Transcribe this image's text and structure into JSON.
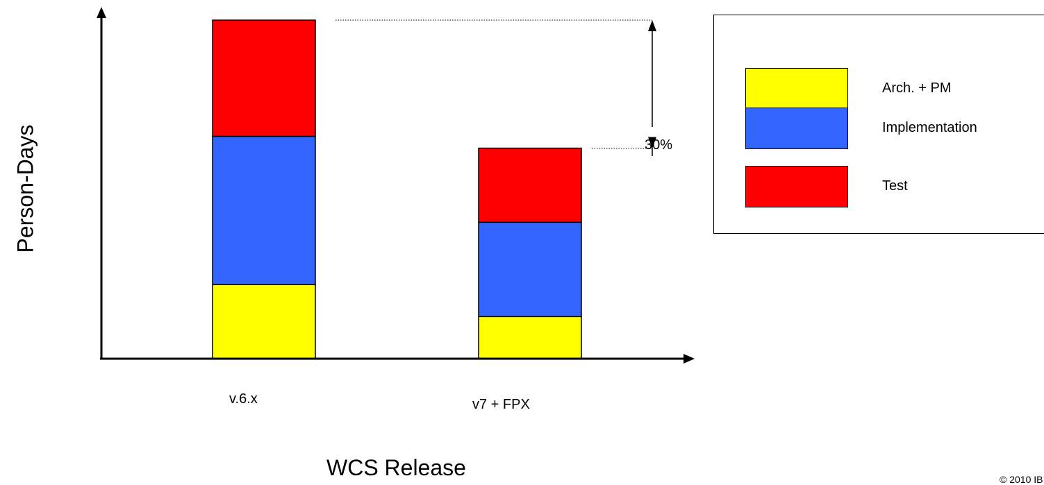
{
  "chart_data": {
    "type": "bar",
    "stacked": true,
    "categories": [
      "v.6.x",
      "v7 + FPX"
    ],
    "series": [
      {
        "name": "Arch. + PM",
        "color": "#ffff00",
        "values": [
          22,
          12.5
        ]
      },
      {
        "name": "Implementation",
        "color": "#3366ff",
        "values": [
          44,
          28
        ]
      },
      {
        "name": "Test",
        "color": "#ff0000",
        "values": [
          34.5,
          22
        ]
      }
    ],
    "xlabel": "WCS Release",
    "ylabel": "Person-Days",
    "ylim": [
      0,
      104
    ],
    "grid": false,
    "legend_position": "top-right",
    "annotation": {
      "text": "30%"
    }
  },
  "footer": {
    "copyright": "© 2010 IB"
  }
}
